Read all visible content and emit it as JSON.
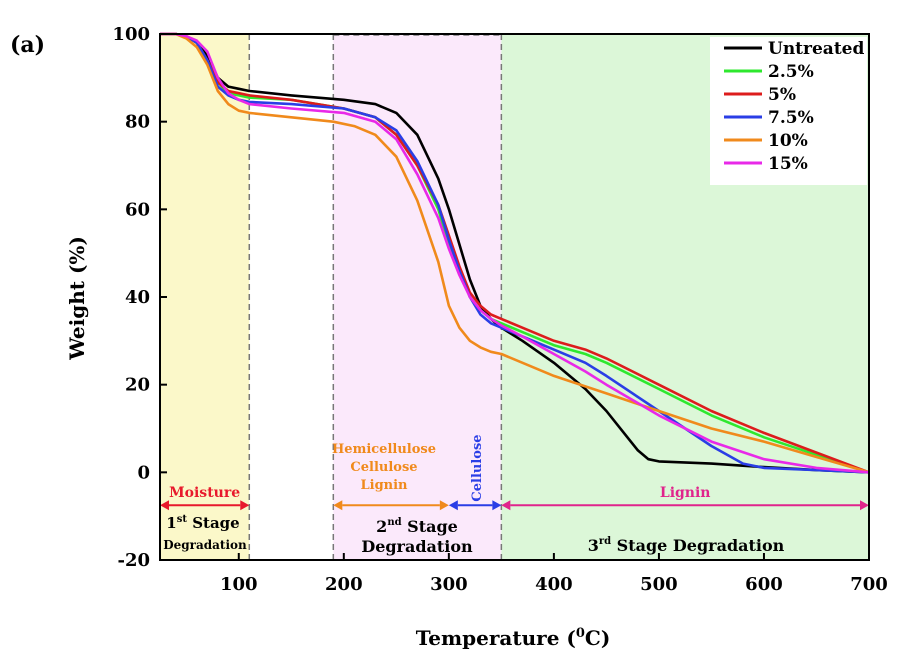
{
  "panel_label": "(a)",
  "chart_data": {
    "type": "line",
    "xlabel": "Temperature (",
    "xlabel_sup": "0",
    "xlabel_end": "C)",
    "ylabel": "Weight (%)",
    "xlim": [
      25,
      700
    ],
    "ylim": [
      -20,
      100
    ],
    "xticks": [
      100,
      200,
      300,
      400,
      500,
      600,
      700
    ],
    "yticks": [
      -20,
      0,
      20,
      40,
      60,
      80,
      100
    ],
    "legend_position": "top-right",
    "regions": [
      {
        "name": "Moisture",
        "x0": 25,
        "x1": 110,
        "color": "#fbf8c9"
      },
      {
        "name": "Hemicellulose-Cellulose-Lignin",
        "x0": 190,
        "x1": 350,
        "color": "#fbe9fb"
      },
      {
        "name": "Lignin",
        "x0": 350,
        "x1": 700,
        "color": "#dcf7d8"
      }
    ],
    "boundaries": [
      110,
      190,
      350
    ],
    "stage_arrows": [
      {
        "label": "Moisture",
        "x0": 25,
        "x1": 110,
        "y": -7.5,
        "color": "#e8192c"
      },
      {
        "label": "Lignin",
        "x0": 350,
        "x1": 700,
        "y": -7.5,
        "color": "#e0248c"
      },
      {
        "label": "",
        "x0": 190,
        "x1": 300,
        "y": -7.5,
        "color": "#f08a1c"
      },
      {
        "label": "",
        "x0": 300,
        "x1": 350,
        "y": -7.5,
        "color": "#2a3ee6"
      }
    ],
    "annotations": {
      "hemicellulose": [
        "Hemicellulose",
        "Cellulose",
        "Lignin"
      ],
      "hemicellulose_color": "#f08a1c",
      "cellulose": "Cellulose",
      "cellulose_color": "#2a3ee6",
      "stage1_num": "1",
      "stage1_sup": "st",
      "stage1_word": " Stage",
      "stage1_line2": "Degradation",
      "stage2_num": "2",
      "stage2_sup": "nd",
      "stage2_word": " Stage",
      "stage2_line2": "Degradation",
      "stage3_num": "3",
      "stage3_sup": "rd",
      "stage3_rest": " Stage Degradation"
    },
    "series": [
      {
        "name": "Untreated",
        "color": "#000000",
        "x": [
          25,
          40,
          50,
          60,
          70,
          80,
          90,
          100,
          110,
          150,
          200,
          230,
          250,
          270,
          290,
          300,
          310,
          320,
          330,
          340,
          350,
          370,
          400,
          430,
          450,
          470,
          480,
          490,
          500,
          550,
          600,
          650,
          700
        ],
        "y": [
          100,
          100,
          99.5,
          98,
          95,
          90,
          88,
          87.5,
          87,
          86,
          85,
          84,
          82,
          77,
          67,
          60,
          52,
          44,
          38,
          35,
          33,
          30,
          25,
          19,
          14,
          8,
          5,
          3,
          2.5,
          2,
          1.2,
          0.5,
          0
        ]
      },
      {
        "name": "2.5%",
        "color": "#2ee82e",
        "x": [
          25,
          40,
          50,
          60,
          70,
          80,
          90,
          100,
          110,
          150,
          200,
          230,
          250,
          270,
          290,
          300,
          310,
          320,
          330,
          340,
          350,
          370,
          400,
          430,
          450,
          500,
          550,
          600,
          650,
          700
        ],
        "y": [
          100,
          100,
          99.5,
          98,
          94,
          89,
          86.5,
          86,
          85.5,
          85,
          83,
          81,
          77,
          70,
          60,
          52,
          46,
          40,
          37,
          35,
          34,
          32,
          29,
          27,
          25,
          19,
          13,
          8,
          4,
          0
        ]
      },
      {
        "name": "5%",
        "color": "#dd1c1c",
        "x": [
          25,
          40,
          50,
          60,
          70,
          80,
          90,
          100,
          110,
          150,
          200,
          230,
          250,
          270,
          290,
          300,
          310,
          320,
          330,
          340,
          350,
          370,
          400,
          430,
          450,
          500,
          550,
          600,
          650,
          700
        ],
        "y": [
          100,
          100,
          99.5,
          98,
          94,
          89,
          87,
          86.5,
          86,
          85,
          83,
          81,
          77,
          70,
          61,
          54,
          47,
          41,
          38,
          36,
          35,
          33,
          30,
          28,
          26,
          20,
          14,
          9,
          4.5,
          0
        ]
      },
      {
        "name": "7.5%",
        "color": "#2a3ee6",
        "x": [
          25,
          40,
          50,
          60,
          70,
          80,
          90,
          100,
          110,
          150,
          200,
          230,
          250,
          270,
          290,
          300,
          310,
          320,
          330,
          340,
          350,
          370,
          400,
          430,
          450,
          500,
          550,
          580,
          600,
          650,
          700
        ],
        "y": [
          100,
          100,
          99.5,
          98,
          94,
          88,
          86,
          85,
          84.5,
          84,
          83,
          81,
          78,
          71,
          61,
          53,
          46,
          40,
          36,
          34,
          33,
          31,
          28,
          25,
          22,
          14,
          6,
          2,
          1,
          0.5,
          0
        ]
      },
      {
        "name": "10%",
        "color": "#f08a1c",
        "x": [
          25,
          40,
          50,
          60,
          70,
          80,
          90,
          100,
          110,
          150,
          190,
          210,
          230,
          250,
          270,
          290,
          300,
          310,
          320,
          330,
          340,
          350,
          400,
          450,
          500,
          550,
          600,
          650,
          700
        ],
        "y": [
          100,
          100,
          99,
          97,
          93,
          87,
          84,
          82.5,
          82,
          81,
          80,
          79,
          77,
          72,
          62,
          48,
          38,
          33,
          30,
          28.5,
          27.5,
          27,
          22,
          18,
          14,
          10,
          7,
          3.5,
          0
        ]
      },
      {
        "name": "15%",
        "color": "#e829e8",
        "x": [
          25,
          40,
          50,
          60,
          70,
          80,
          90,
          100,
          110,
          150,
          200,
          230,
          250,
          270,
          290,
          300,
          310,
          320,
          330,
          340,
          350,
          370,
          400,
          430,
          450,
          500,
          550,
          600,
          650,
          700
        ],
        "y": [
          100,
          100,
          99.5,
          98.5,
          96,
          90,
          86.5,
          85,
          84,
          83,
          82,
          80,
          76,
          68,
          58,
          51,
          45,
          40,
          37,
          35,
          33.5,
          31,
          27,
          23,
          20,
          13,
          7,
          3,
          1,
          0
        ]
      }
    ]
  }
}
